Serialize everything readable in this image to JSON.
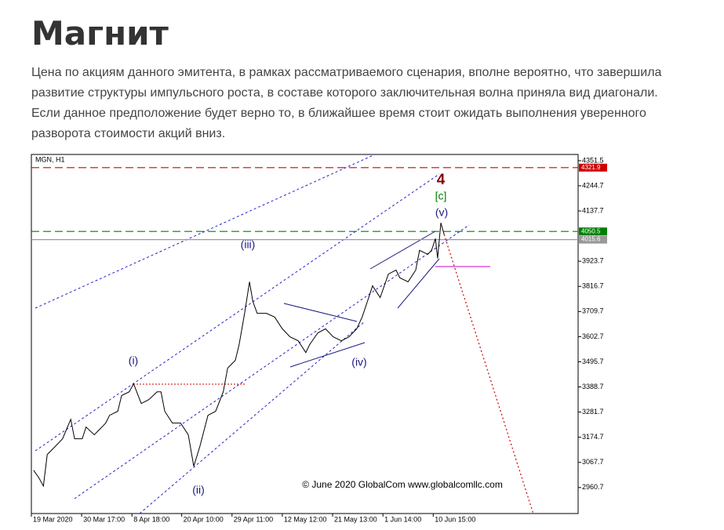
{
  "header": {
    "title": "Магнит"
  },
  "body": {
    "paragraph": "Цена по акциям данного эмитента, в рамках рассматриваемого сценария, вполне вероятно, что завершила развитие структуры импульсного роста, в составе которого заключительная волна приняла вид диагонали. Если данное предположение будет верно то, в ближайшее время стоит ожидать выполнения уверенного разворота стоимости акций вниз."
  },
  "chart_data": {
    "type": "line",
    "title": "MGN, H1",
    "annotations": [
      "(i)",
      "(ii)",
      "(iii)",
      "(iv)",
      "(v)",
      "4",
      "[c]",
      "© June 2020 GlobalCom www.globalcomllc.com"
    ],
    "xlim": [
      0,
      100
    ],
    "xticks": [
      {
        "value": 0,
        "label": "19 Mar 2020"
      },
      {
        "value": 9.2,
        "label": "30 Mar 17:00"
      },
      {
        "value": 18.4,
        "label": "8 Apr 18:00"
      },
      {
        "value": 27.5,
        "label": "20 Apr 10:00"
      },
      {
        "value": 36.7,
        "label": "29 Apr 11:00"
      },
      {
        "value": 45.9,
        "label": "12 May 12:00"
      },
      {
        "value": 55.1,
        "label": "21 May 13:00"
      },
      {
        "value": 64.3,
        "label": "1 Jun 14:00"
      },
      {
        "value": 73.5,
        "label": "10 Jun 15:00"
      }
    ],
    "ylim": [
      2850,
      4378
    ],
    "yticks": [
      4351.5,
      4244.7,
      4137.7,
      3923.7,
      3816.7,
      3709.7,
      3602.7,
      3495.7,
      3388.7,
      3281.7,
      3174.7,
      3067.7,
      2960.7
    ],
    "levels": [
      {
        "value": 4321.9,
        "color": "#d00000"
      },
      {
        "value": 4050.5,
        "color": "#008000"
      },
      {
        "value": 4015.6,
        "color": "#999999"
      }
    ],
    "series": [
      {
        "color": "#000000",
        "style": "solid",
        "x": [
          0.4,
          1.4,
          2.2,
          2.9,
          4.3,
          5.7,
          7.2,
          7.9,
          9.3,
          10,
          11.5,
          12.9,
          13.6,
          14.3,
          15.8,
          16.5,
          17.9,
          18.7,
          20.1,
          21.5,
          23,
          23.7,
          24.4,
          25.8,
          27.3,
          28.7,
          29.7,
          30.8,
          32.3,
          33.7,
          35.1,
          35.9,
          37.3,
          38,
          39,
          39.9,
          40.5,
          41.3,
          43,
          44.5,
          45.9,
          47.3,
          48.8,
          50.2,
          50.9,
          52.4,
          53.8,
          55.2,
          56.7,
          58.1,
          59.5,
          60.5,
          61.7,
          62.4,
          63.8,
          65.3,
          66.7,
          67.4,
          68.9,
          70.3,
          71,
          72.5,
          73.2,
          73.9,
          74.3,
          74.9,
          75.5
        ],
        "values": [
          3034,
          3001,
          2967,
          3101,
          3134,
          3168,
          3251,
          3168,
          3168,
          3218,
          3185,
          3218,
          3235,
          3268,
          3285,
          3352,
          3368,
          3402,
          3318,
          3335,
          3368,
          3368,
          3285,
          3235,
          3235,
          3185,
          3051,
          3134,
          3268,
          3285,
          3368,
          3469,
          3502,
          3569,
          3702,
          3836,
          3753,
          3702,
          3702,
          3686,
          3636,
          3602,
          3585,
          3535,
          3569,
          3619,
          3636,
          3602,
          3585,
          3602,
          3636,
          3686,
          3769,
          3819,
          3769,
          3869,
          3886,
          3853,
          3836,
          3886,
          3970,
          3953,
          3970,
          4020,
          3936,
          4087,
          4037
        ]
      },
      {
        "color": "#d00000",
        "style": "dotted",
        "x": [
          75.5,
          91.8
        ],
        "values": [
          4037,
          2850
        ]
      }
    ]
  }
}
